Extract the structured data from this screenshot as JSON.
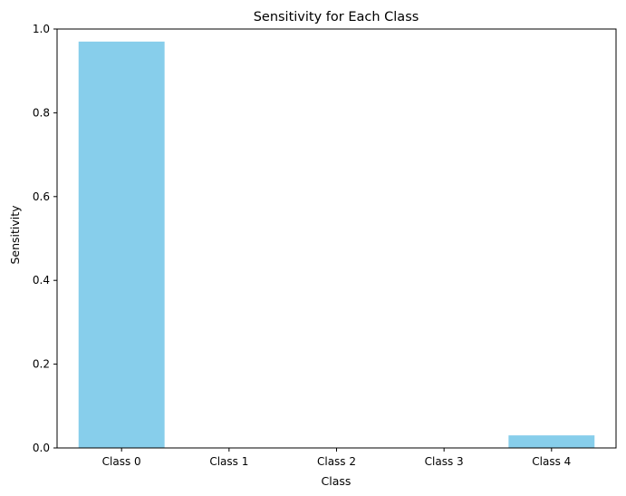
{
  "chart_data": {
    "type": "bar",
    "title": "Sensitivity for Each Class",
    "xlabel": "Class",
    "ylabel": "Sensitivity",
    "categories": [
      "Class 0",
      "Class 1",
      "Class 2",
      "Class 3",
      "Class 4"
    ],
    "values": [
      0.97,
      0.0,
      0.0,
      0.0,
      0.03
    ],
    "ylim": [
      0,
      1
    ],
    "yticks": [
      0.0,
      0.2,
      0.4,
      0.6,
      0.8,
      1.0
    ],
    "ytick_labels": [
      "0.0",
      "0.2",
      "0.4",
      "0.6",
      "0.8",
      "1.0"
    ],
    "grid": false,
    "bar_color": "#87ceeb",
    "axis_color": "#000000"
  }
}
